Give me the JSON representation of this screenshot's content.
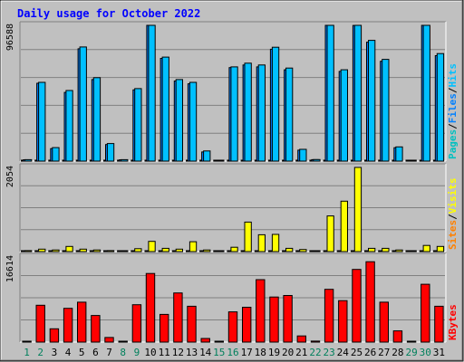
{
  "chart_data": {
    "type": "bar",
    "title": "Daily usage for October 2022",
    "categories": [
      "1",
      "2",
      "3",
      "4",
      "5",
      "6",
      "7",
      "8",
      "9",
      "10",
      "11",
      "12",
      "13",
      "14",
      "15",
      "16",
      "17",
      "18",
      "19",
      "20",
      "21",
      "22",
      "23",
      "24",
      "25",
      "26",
      "27",
      "28",
      "29",
      "30",
      "31"
    ],
    "weekend_days": [
      1,
      2,
      8,
      9,
      15,
      16,
      22,
      23,
      29,
      30
    ],
    "panels": [
      {
        "id": "hits",
        "max_label": "96588",
        "ymax": 96588,
        "legend": [
          "Pages",
          "/",
          "Files",
          "/",
          "Hits"
        ],
        "series": [
          {
            "name": "Pages",
            "values": [
              0,
              0,
              0,
              0,
              0,
              0,
              0,
              0,
              0,
              0,
              0,
              0,
              0,
              0,
              0,
              0,
              0,
              0,
              0,
              0,
              0,
              0,
              0,
              0,
              0,
              0,
              0,
              0,
              0,
              0,
              0
            ]
          },
          {
            "name": "Files",
            "values": [
              900,
              55400,
              8900,
              48900,
              79900,
              58000,
              11800,
              900,
              50700,
              97000,
              73100,
              57000,
              55000,
              6500,
              0,
              66500,
              68400,
              67000,
              79600,
              65000,
              7800,
              1000,
              100000,
              63800,
              96500,
              84600,
              71000,
              9500,
              0,
              100000,
              75000
            ]
          },
          {
            "name": "Hits",
            "values": [
              1000,
              56000,
              9600,
              50200,
              81200,
              59400,
              12500,
              1000,
              51600,
              99300,
              74000,
              58000,
              56000,
              7200,
              0,
              67000,
              69700,
              68400,
              81000,
              66200,
              8400,
              1100,
              101300,
              65000,
              98600,
              85900,
              72400,
              10100,
              0,
              101300,
              76500
            ]
          }
        ],
        "colors": {
          "Pages": "#00c0c0",
          "Files": "#0080ff",
          "Hits": "#00c0ff"
        }
      },
      {
        "id": "visits",
        "max_label": "2054",
        "ymax": 2054,
        "legend": [
          "Sites",
          "/",
          "Visits"
        ],
        "series": [
          {
            "name": "Sites",
            "values": [
              0,
              0,
              0,
              0,
              0,
              0,
              0,
              0,
              0,
              0,
              0,
              0,
              0,
              0,
              0,
              0,
              0,
              0,
              0,
              0,
              0,
              0,
              0,
              0,
              0,
              0,
              0,
              0,
              0,
              0,
              0
            ]
          },
          {
            "name": "Visits",
            "values": [
              25,
              60,
              40,
              125,
              60,
              40,
              25,
              20,
              70,
              250,
              80,
              60,
              240,
              40,
              0,
              105,
              720,
              410,
              420,
              80,
              50,
              20,
              870,
              1230,
              2054,
              80,
              80,
              40,
              0,
              150,
              125
            ]
          }
        ],
        "colors": {
          "Sites": "#ff8000",
          "Visits": "#ffff00"
        }
      },
      {
        "id": "kbytes",
        "max_label": "16614",
        "ymax": 16614,
        "legend": [
          "KBytes"
        ],
        "series": [
          {
            "name": "KBytes",
            "values": [
              0,
              7200,
              2600,
              6600,
              7800,
              5200,
              900,
              100,
              7300,
              13400,
              5400,
              9600,
              7000,
              700,
              0,
              5900,
              6800,
              12200,
              8800,
              9100,
              1200,
              200,
              10300,
              8100,
              14200,
              15700,
              7800,
              2200,
              0,
              11300,
              7000
            ]
          }
        ],
        "colors": {
          "KBytes": "#ff0000"
        }
      }
    ],
    "colors": {
      "background": "#c0c0c0",
      "title": "#0000ff",
      "weekday_label": "#000000",
      "weekend_label": "#00805c",
      "slash": "#000000"
    }
  }
}
